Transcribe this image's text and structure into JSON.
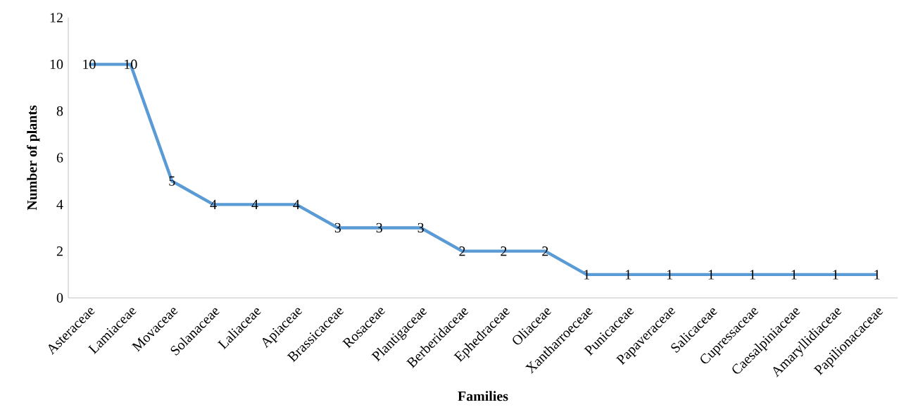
{
  "chart_data": {
    "type": "line",
    "xlabel": "Families",
    "ylabel": "Number of plants",
    "categories": [
      "Asteraceae",
      "Lamiaceae",
      "Movaceae",
      "Solanaceae",
      "Laliaceae",
      "Apiaceae",
      "Brassicaceae",
      "Rosaceae",
      "Plantigaceae",
      "Berberidaceae",
      "Ephedraceae",
      "Oliaceae",
      "Xantharroeceae",
      "Punicaceae",
      "Papaveraceae",
      "Salicaceae",
      "Cupressaceae",
      "Caesalpiniaceae",
      "Amaryllidiaceae",
      "Papilionacaceae"
    ],
    "values": [
      10,
      10,
      5,
      4,
      4,
      4,
      3,
      3,
      3,
      2,
      2,
      2,
      1,
      1,
      1,
      1,
      1,
      1,
      1,
      1
    ],
    "color": "#5b9bd5",
    "ylim": [
      0,
      12
    ],
    "yticks": [
      0,
      2,
      4,
      6,
      8,
      10,
      12
    ],
    "grid": false,
    "line_style": "solid",
    "data_labels": true
  }
}
